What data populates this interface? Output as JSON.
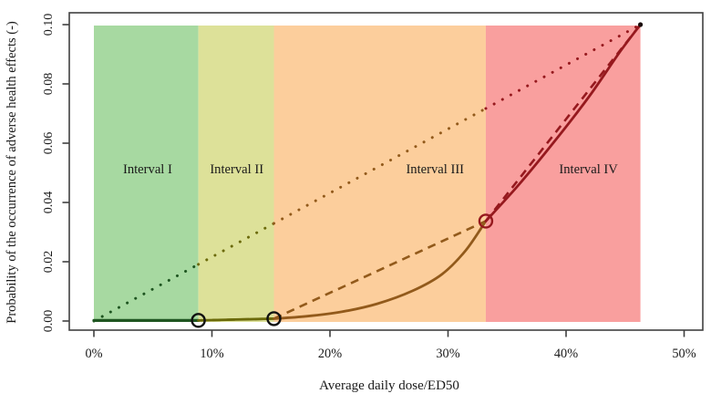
{
  "chart_data": {
    "type": "line",
    "title": "",
    "xlabel": "Average daily dose/ED50",
    "ylabel": "Probability of the occurrence of adverse health effects (-)",
    "xlim_percent": [
      0,
      50
    ],
    "ylim": [
      0,
      0.1
    ],
    "grid": false,
    "x_ticks": {
      "values": [
        0,
        10,
        20,
        30,
        40,
        50
      ],
      "labels": [
        "0%",
        "10%",
        "20%",
        "30%",
        "40%",
        "50%"
      ]
    },
    "y_ticks": {
      "values": [
        0,
        0.02,
        0.04,
        0.06,
        0.08,
        0.1
      ],
      "labels": [
        "0.00",
        "0.02",
        "0.04",
        "0.06",
        "0.08",
        "0.10"
      ]
    },
    "intervals": [
      {
        "label": "Interval I",
        "x_range": [
          0,
          8.85
        ],
        "band_color": "#a7d9a1",
        "line_color": "#1e5520",
        "label_pos": {
          "x": 4.55,
          "y": 0.0514
        }
      },
      {
        "label": "Interval II",
        "x_range": [
          8.85,
          15.25
        ],
        "band_color": "#dde199",
        "line_color": "#6b6a0a",
        "label_pos": {
          "x": 12.1,
          "y": 0.0514
        }
      },
      {
        "label": "Interval III",
        "x_range": [
          15.25,
          33.2
        ],
        "band_color": "#fcce9c",
        "line_color": "#925a1b",
        "label_pos": {
          "x": 28.9,
          "y": 0.0514
        }
      },
      {
        "label": "Interval IV",
        "x_range": [
          33.2,
          46.3
        ],
        "band_color": "#f99f9e",
        "line_color": "#96191e",
        "label_pos": {
          "x": 41.9,
          "y": 0.0514
        }
      }
    ],
    "series": [
      {
        "name": "linear-reference",
        "style": "dotted",
        "points": [
          [
            0,
            0
          ],
          [
            46.3,
            0.1
          ]
        ]
      },
      {
        "name": "piecewise-linear-interpolation",
        "style": "dashed",
        "points": [
          [
            8.85,
            0.0002
          ],
          [
            15.25,
            0.0008
          ],
          [
            33.2,
            0.0337
          ],
          [
            46.3,
            0.1
          ]
        ]
      },
      {
        "name": "dose-response-curve",
        "style": "solid",
        "points": [
          [
            0,
            0.0002
          ],
          [
            4,
            0.0002
          ],
          [
            8.85,
            0.0002
          ],
          [
            12,
            0.0005
          ],
          [
            15.25,
            0.0008
          ],
          [
            18,
            0.0016
          ],
          [
            21,
            0.0031
          ],
          [
            24,
            0.0058
          ],
          [
            27,
            0.0102
          ],
          [
            29.5,
            0.0158
          ],
          [
            31.5,
            0.0238
          ],
          [
            33.2,
            0.0337
          ],
          [
            36,
            0.046
          ],
          [
            39,
            0.0605
          ],
          [
            42,
            0.076
          ],
          [
            44.5,
            0.0905
          ],
          [
            46.3,
            0.1
          ]
        ]
      }
    ],
    "markers": {
      "open_circles": [
        {
          "x": 8.85,
          "y": 0.0002,
          "color": "#111111"
        },
        {
          "x": 15.25,
          "y": 0.0008,
          "color": "#111111"
        },
        {
          "x": 33.2,
          "y": 0.0337,
          "color": "#96191e"
        }
      ],
      "end_dot": {
        "x": 46.3,
        "y": 0.1,
        "color": "#1a0d0d"
      }
    },
    "axis_color": "#404040",
    "text_color": "#1a1a1a"
  }
}
